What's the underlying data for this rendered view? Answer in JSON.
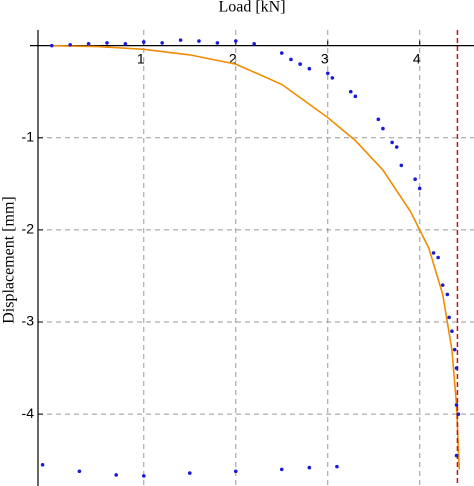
{
  "chart_data": {
    "type": "scatter",
    "title": "Load [kN]",
    "y_label": "Displacement [mm]",
    "xlim": [
      -0.15,
      4.59
    ],
    "ylim": [
      -4.78,
      0.17
    ],
    "xticks": [
      1,
      2,
      3,
      4
    ],
    "yticks": [
      -1,
      -2,
      -3,
      -4
    ],
    "grid": true,
    "points": {
      "color": "#1a1adb",
      "x": [
        0.0,
        0.2,
        0.4,
        0.6,
        0.8,
        1.0,
        1.2,
        1.4,
        1.6,
        1.8,
        2.0,
        2.2,
        2.5,
        2.6,
        2.7,
        2.8,
        3.0,
        3.05,
        3.25,
        3.3,
        3.55,
        3.6,
        3.7,
        3.75,
        3.8,
        3.95,
        4.0,
        4.15,
        4.2,
        4.25,
        4.3,
        4.32,
        4.35,
        4.38,
        4.4,
        4.4,
        4.42,
        4.4,
        -0.1,
        0.3,
        0.7,
        1.0,
        1.5,
        2.0,
        2.5,
        2.8,
        3.1
      ],
      "y": [
        0.0,
        0.01,
        0.02,
        0.03,
        0.02,
        0.04,
        0.03,
        0.06,
        0.05,
        0.03,
        0.05,
        0.02,
        -0.08,
        -0.15,
        -0.2,
        -0.25,
        -0.3,
        -0.35,
        -0.5,
        -0.55,
        -0.8,
        -0.9,
        -1.05,
        -1.1,
        -1.3,
        -1.45,
        -1.55,
        -2.25,
        -2.3,
        -2.6,
        -2.7,
        -2.95,
        -3.1,
        -3.3,
        -3.5,
        -3.9,
        -4.0,
        -4.45,
        -4.55,
        -4.62,
        -4.66,
        -4.67,
        -4.64,
        -4.62,
        -4.6,
        -4.58,
        -4.57
      ]
    },
    "curve": {
      "color": "#f08c00",
      "x": [
        0,
        0.5,
        1,
        1.5,
        2,
        2.5,
        3,
        3.3,
        3.6,
        3.9,
        4.1,
        4.25,
        4.35,
        4.4,
        4.43
      ],
      "y": [
        0,
        -0.01,
        -0.04,
        -0.1,
        -0.2,
        -0.42,
        -0.78,
        -1.03,
        -1.35,
        -1.8,
        -2.2,
        -2.7,
        -3.3,
        -3.9,
        -4.6
      ]
    },
    "vline": {
      "x": 4.41,
      "color": "#d01010"
    }
  }
}
